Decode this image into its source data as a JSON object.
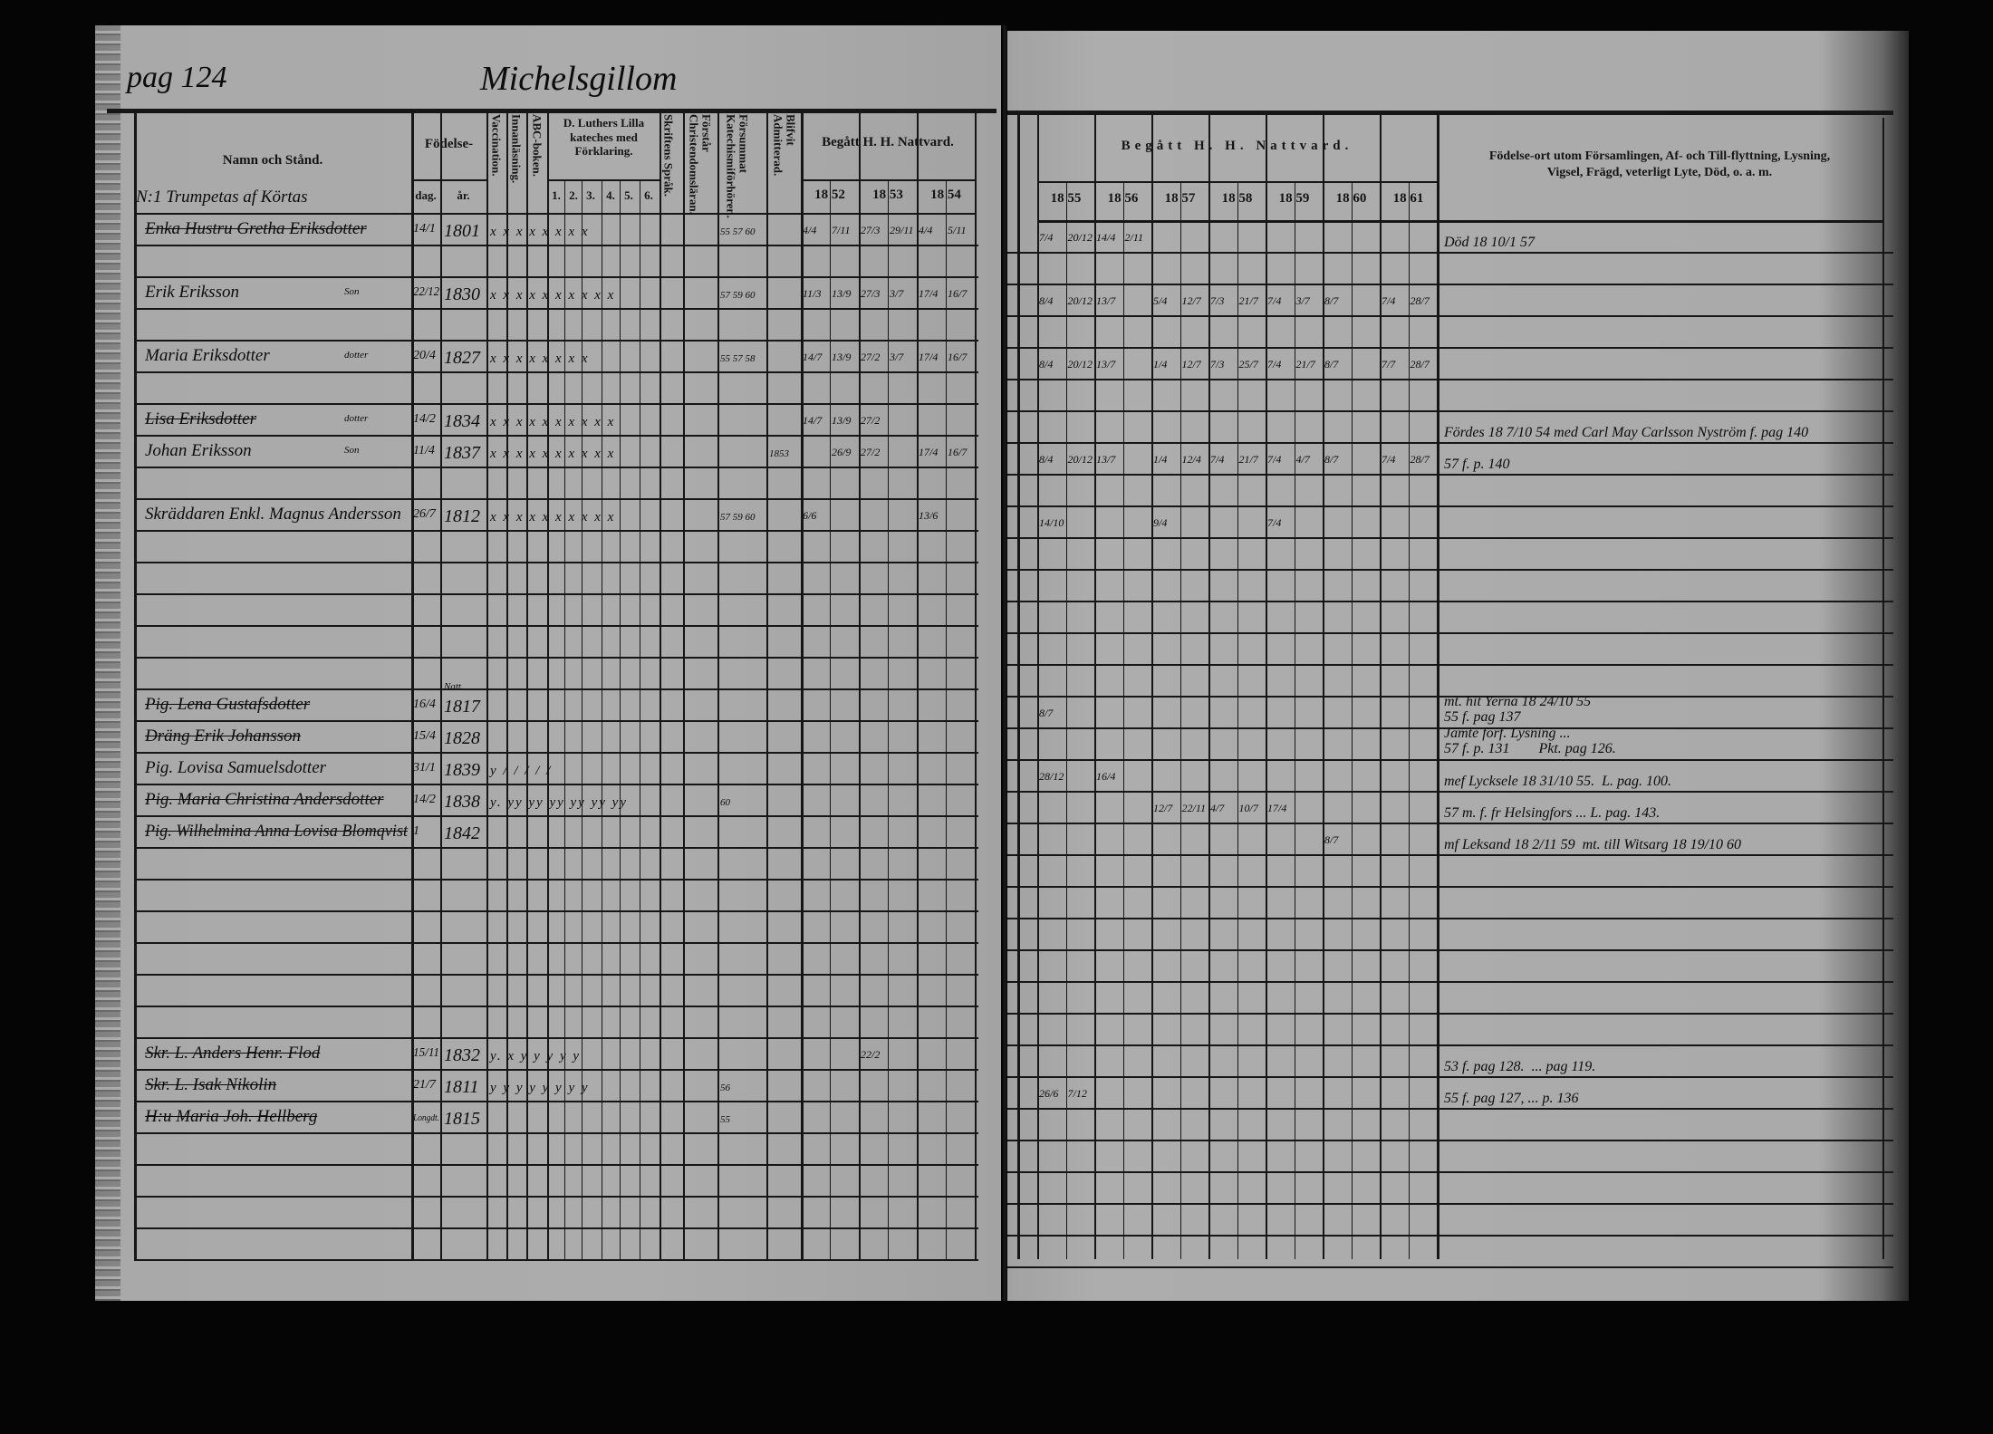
{
  "left_page": {
    "page_number": "pag 124",
    "title": "Michelsgillom",
    "headers": {
      "name": "Namn och Stånd.",
      "birth": "Födelse-",
      "day": "dag.",
      "year": "år.",
      "vaccination": "Vaccination.",
      "innanlasning": "Innanläsning.",
      "abc": "ABC-boken.",
      "luther": "D. Luthers Lilla kateches med Förklaring.",
      "luther_nums": [
        "1.",
        "2.",
        "3.",
        "4.",
        "5.",
        "6."
      ],
      "skriftens": "Skriftens Språk.",
      "forstar": "Förstår Christendomsläran.",
      "forsummat": "Försummat Katechismiförhören.",
      "blifvit": "Blifvit Admitterad.",
      "begatt": "Begått H. H. Nattvard.",
      "years": [
        "18 52",
        "18 53",
        "18 54"
      ]
    }
  },
  "right_page": {
    "headers": {
      "begatt": "Begått H. H. Nattvard.",
      "years": [
        "18 55",
        "18 56",
        "18 57",
        "18 58",
        "18 59",
        "18 60",
        "18 61"
      ],
      "notes": "Födelse-ort utom Församlingen, Af- och Till-flyttning, Lysning,\nVigsel, Frägd, veterligt Lyte, Död, o. a. m."
    }
  },
  "rows": [
    {
      "name": "N:1 Trumpetas af Körtas"
    },
    {
      "name": "Enka Hustru Gretha Eriksdotter",
      "struck": true,
      "day": "14/1",
      "year": "1801",
      "marks": "x x x x x x x x",
      "fors": "55 57 60",
      "comm": {
        "1852": [
          "4/4",
          "7/11"
        ],
        "1853": [
          "27/3",
          "29/11"
        ],
        "1854": [
          "4/4",
          "5/11"
        ],
        "1855": [
          "7/4",
          "20/12"
        ],
        "1856": [
          "14/4",
          "2/11"
        ]
      },
      "note": "Död 18 10/1 57"
    },
    {},
    {
      "name": "Erik Eriksson",
      "sup": "Son",
      "day": "22/12",
      "year": "1830",
      "marks": "x x x x x x x x x x",
      "fors": "57 59 60",
      "comm": {
        "1852": [
          "11/3",
          "13/9"
        ],
        "1853": [
          "27/3",
          "3/7"
        ],
        "1854": [
          "17/4",
          "16/7"
        ],
        "1855": [
          "8/4",
          "20/12"
        ],
        "1856": [
          "13/7"
        ],
        "1857": [
          "5/4",
          "12/7"
        ],
        "1858": [
          "7/3",
          "21/7"
        ],
        "1859": [
          "7/4",
          "3/7"
        ],
        "1860": [
          "8/7"
        ],
        "1861": [
          "7/4",
          "28/7"
        ]
      }
    },
    {},
    {
      "name": "Maria Eriksdotter",
      "sup": "dotter",
      "day": "20/4",
      "year": "1827",
      "marks": "x x x x x x x x",
      "fors": "55 57 58",
      "comm": {
        "1852": [
          "14/7",
          "13/9"
        ],
        "1853": [
          "27/2",
          "3/7"
        ],
        "1854": [
          "17/4",
          "16/7"
        ],
        "1855": [
          "8/4",
          "20/12"
        ],
        "1856": [
          "13/7"
        ],
        "1857": [
          "1/4",
          "12/7"
        ],
        "1858": [
          "7/3",
          "25/7"
        ],
        "1859": [
          "7/4",
          "21/7"
        ],
        "1860": [
          "8/7"
        ],
        "1861": [
          "7/7",
          "28/7"
        ]
      }
    },
    {},
    {
      "name": "Lisa Eriksdotter",
      "sup": "dotter",
      "struck": true,
      "day": "14/2",
      "year": "1834",
      "marks": "x x x x x x x x x x",
      "comm": {
        "1852": [
          "14/7",
          "13/9"
        ],
        "1853": [
          "27/2"
        ]
      },
      "note": "Fördes 18 7/10 54 med Carl May Carlsson Nyström f. pag 140"
    },
    {
      "name": "Johan Eriksson",
      "sup": "Son",
      "day": "11/4",
      "year": "1837",
      "marks": "x x x x x x x x x x",
      "blif": "1853",
      "comm": {
        "1852": [
          "",
          "26/9"
        ],
        "1853": [
          "27/2"
        ],
        "1854": [
          "17/4",
          "16/7"
        ],
        "1855": [
          "8/4",
          "20/12"
        ],
        "1856": [
          "13/7"
        ],
        "1857": [
          "1/4",
          "12/4"
        ],
        "1858": [
          "7/4",
          "21/7"
        ],
        "1859": [
          "7/4",
          "4/7"
        ],
        "1860": [
          "8/7"
        ],
        "1861": [
          "7/4",
          "28/7"
        ]
      },
      "note": "57 f. p. 140"
    },
    {},
    {
      "name": "Skräddaren Enkl. Magnus Andersson",
      "day": "26/7",
      "year": "1812",
      "marks": "x x x x x x x x x x",
      "fors": "57 59 60",
      "comm": {
        "1852": [
          "6/6"
        ],
        "1854": [
          "13/6"
        ],
        "1855": [
          "14/10"
        ],
        "1857": [
          "9/4"
        ],
        "1859": [
          "7/4"
        ]
      }
    },
    {},
    {},
    {},
    {},
    {},
    {
      "name": "Pig. Lena Gustafsdotter",
      "struck": true,
      "day": "16/4",
      "year": "1817",
      "year_note": "Natt.",
      "comm": {
        "1855": [
          "8/7"
        ]
      },
      "note": "mt. hit Yerna 18 24/10 55\n55 f. pag 137"
    },
    {
      "name": "Dräng Erik Johansson",
      "struck": true,
      "day": "15/4",
      "year": "1828",
      "note": "Jämte förf. Lysning ...\n57 f. p. 131        Pkt. pag 126."
    },
    {
      "name": "Pig. Lovisa Samuelsdotter",
      "day": "31/1",
      "year": "1839",
      "marks": "y  /  /  /  /  /",
      "comm": {
        "1855": [
          "28/12"
        ],
        "1856": [
          "16/4"
        ]
      },
      "note": "mef Lycksele 18 31/10 55.  L. pag. 100."
    },
    {
      "name": "Pig. Maria Christina Andersdotter",
      "struck": true,
      "day": "14/2",
      "year": "1838",
      "marks": "y. yy yy yy yy yy yy",
      "fors": "60",
      "comm": {
        "1857": [
          "12/7",
          "22/11"
        ],
        "1858": [
          "4/7",
          "10/7"
        ],
        "1859": [
          "17/4"
        ]
      },
      "note": "57 m. f. fr Helsingfors ... L. pag. 143."
    },
    {
      "name": "Pig. Wilhelmina Anna Lovisa Blomqvist",
      "struck": true,
      "day": "1",
      "year": "1842",
      "comm": {
        "1860": [
          "8/7"
        ]
      },
      "note": "mf Leksand 18 2/11 59  mt. till Witsarg 18 19/10 60"
    },
    {},
    {},
    {},
    {},
    {},
    {},
    {
      "name": "Skr. L. Anders Henr. Flod",
      "struck": true,
      "day": "15/11",
      "year": "1832",
      "marks": "y. x y y y y y",
      "comm": {
        "1853": [
          "22/2"
        ]
      },
      "note": "53 f. pag 128.  ... pag 119."
    },
    {
      "name": "Skr. L. Isak Nikolin",
      "struck": true,
      "day": "21/7",
      "year": "1811",
      "marks": "y y y y y y y y",
      "fors": "56",
      "comm": {
        "1855": [
          "26/6",
          "7/12"
        ]
      },
      "note": "55 f. pag 127, ... p. 136"
    },
    {
      "name": "H:u Maria Joh. Hellberg",
      "struck": true,
      "year": "1815",
      "year_note": "Longdt.",
      "fors": "55"
    }
  ],
  "colors": {
    "paper": "#aaaaaa",
    "ink": "#0c0c0c",
    "background": "#050505"
  }
}
